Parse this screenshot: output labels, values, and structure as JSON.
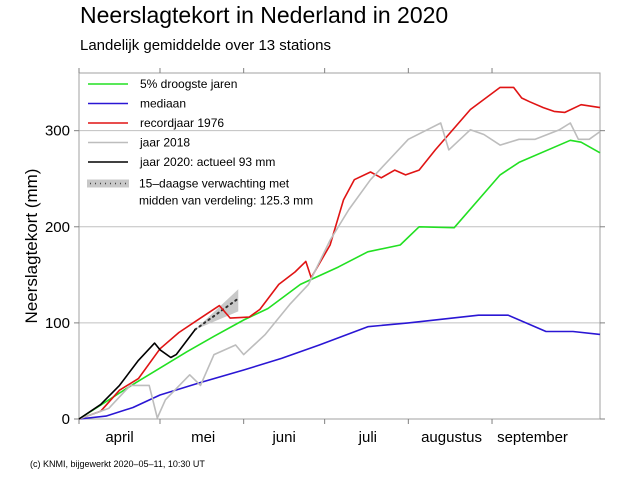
{
  "header": {
    "title": "Neerslagtekort in Nederland in 2020",
    "subtitle": "Landelijk gemiddelde over 13 stations"
  },
  "footer": "(c) KNMI, bijgewerkt 2020–05–11, 10:30 UT",
  "chart_data": {
    "type": "line",
    "title": "Neerslagtekort in Nederland in 2020",
    "subtitle": "Landelijk gemiddelde over 13 stations",
    "xlabel": "",
    "ylabel": "Neerslagtekort (mm)",
    "x_unit": "days since 1 April",
    "xlim": [
      0,
      193
    ],
    "ylim": [
      0,
      360
    ],
    "yticks": [
      0,
      100,
      200,
      300
    ],
    "gridlines_y": [
      100,
      200,
      300
    ],
    "month_ticks": [
      0,
      30,
      61,
      91,
      122,
      153
    ],
    "month_labels": [
      {
        "label": "april",
        "center": 15
      },
      {
        "label": "mei",
        "center": 46
      },
      {
        "label": "juni",
        "center": 76
      },
      {
        "label": "juli",
        "center": 107
      },
      {
        "label": "augustus",
        "center": 138
      },
      {
        "label": "september",
        "center": 168
      }
    ],
    "legend_position": "top-left",
    "series": [
      {
        "name": "5% droogste jaren",
        "color": "#22e022",
        "points": [
          [
            0,
            0
          ],
          [
            10,
            18
          ],
          [
            20,
            36
          ],
          [
            30,
            53
          ],
          [
            40,
            70
          ],
          [
            50,
            86
          ],
          [
            61,
            103
          ],
          [
            70,
            115
          ],
          [
            82,
            140
          ],
          [
            96,
            158
          ],
          [
            107,
            174
          ],
          [
            119,
            181
          ],
          [
            126,
            200
          ],
          [
            139,
            199
          ],
          [
            156,
            254
          ],
          [
            163,
            267
          ],
          [
            182,
            290
          ],
          [
            186,
            288
          ],
          [
            193,
            277
          ]
        ]
      },
      {
        "name": "mediaan",
        "color": "#2a16d4",
        "points": [
          [
            0,
            0
          ],
          [
            10,
            3
          ],
          [
            20,
            12
          ],
          [
            30,
            25
          ],
          [
            45,
            38
          ],
          [
            61,
            51
          ],
          [
            75,
            63
          ],
          [
            89,
            77
          ],
          [
            107,
            96
          ],
          [
            122,
            100
          ],
          [
            148,
            108
          ],
          [
            159,
            108
          ],
          [
            173,
            91
          ],
          [
            183,
            91
          ],
          [
            193,
            88
          ]
        ]
      },
      {
        "name": "recordjaar 1976",
        "color": "#e01414",
        "points": [
          [
            0,
            0
          ],
          [
            8,
            8
          ],
          [
            15,
            30
          ],
          [
            22,
            42
          ],
          [
            30,
            73
          ],
          [
            37,
            90
          ],
          [
            45,
            105
          ],
          [
            52,
            118
          ],
          [
            56,
            105
          ],
          [
            63,
            106
          ],
          [
            67,
            114
          ],
          [
            74,
            140
          ],
          [
            80,
            153
          ],
          [
            84,
            164
          ],
          [
            86,
            147
          ],
          [
            93,
            181
          ],
          [
            98,
            228
          ],
          [
            102,
            249
          ],
          [
            108,
            257
          ],
          [
            112,
            251
          ],
          [
            117,
            259
          ],
          [
            121,
            254
          ],
          [
            126,
            259
          ],
          [
            132,
            280
          ],
          [
            145,
            322
          ],
          [
            156,
            345
          ],
          [
            161,
            345
          ],
          [
            164,
            334
          ],
          [
            167,
            330
          ],
          [
            172,
            324
          ],
          [
            176,
            320
          ],
          [
            180,
            319
          ],
          [
            186,
            327
          ],
          [
            193,
            324
          ]
        ]
      },
      {
        "name": "jaar 2018",
        "color": "#bdbdbd",
        "points": [
          [
            0,
            0
          ],
          [
            11,
            11
          ],
          [
            19,
            35
          ],
          [
            26,
            35
          ],
          [
            29,
            1
          ],
          [
            32,
            20
          ],
          [
            41,
            46
          ],
          [
            45,
            35
          ],
          [
            50,
            67
          ],
          [
            58,
            77
          ],
          [
            61,
            67
          ],
          [
            69,
            88
          ],
          [
            78,
            119
          ],
          [
            85,
            140
          ],
          [
            93,
            186
          ],
          [
            100,
            218
          ],
          [
            108,
            249
          ],
          [
            115,
            270
          ],
          [
            122,
            291
          ],
          [
            134,
            308
          ],
          [
            137,
            280
          ],
          [
            145,
            301
          ],
          [
            150,
            296
          ],
          [
            156,
            285
          ],
          [
            163,
            291
          ],
          [
            169,
            291
          ],
          [
            178,
            301
          ],
          [
            182,
            308
          ],
          [
            185,
            291
          ],
          [
            189,
            291
          ],
          [
            193,
            299
          ]
        ]
      },
      {
        "name": "jaar 2020: actueel 93 mm",
        "color": "#000000",
        "points": [
          [
            0,
            0
          ],
          [
            8,
            15
          ],
          [
            15,
            35
          ],
          [
            22,
            61
          ],
          [
            28,
            79
          ],
          [
            30,
            72
          ],
          [
            34,
            64
          ],
          [
            36,
            67
          ],
          [
            43,
            93
          ]
        ]
      }
    ],
    "forecast": {
      "name": "15–daagse verwachting met midden van verdeling: 125.3 mm",
      "color": "#c8c8c8",
      "start": [
        43,
        93
      ],
      "end_day": 59,
      "median_end": 125.3,
      "upper_end": 135,
      "lower_end": 112
    }
  }
}
